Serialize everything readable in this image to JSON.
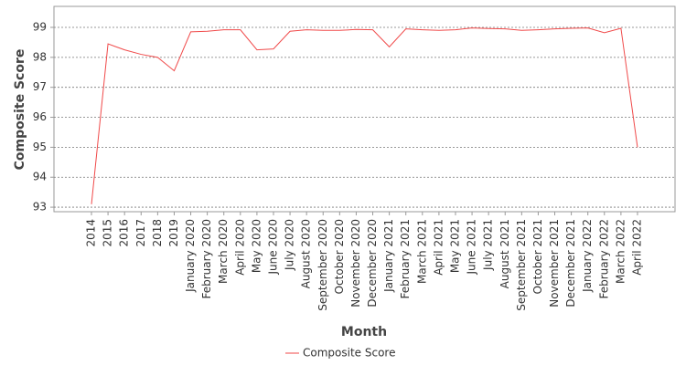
{
  "chart_data": {
    "type": "line",
    "x_label": "Month",
    "y_label": "Composite Score",
    "categories": [
      "2014",
      "2015",
      "2016",
      "2017",
      "2018",
      "2019",
      "January 2020",
      "February 2020",
      "March 2020",
      "April 2020",
      "May 2020",
      "June 2020",
      "July 2020",
      "August 2020",
      "September 2020",
      "October 2020",
      "November 2020",
      "December 2020",
      "January 2021",
      "February 2021",
      "March 2021",
      "April 2021",
      "May 2021",
      "June 2021",
      "July 2021",
      "August 2021",
      "September 2021",
      "October 2021",
      "November 2021",
      "December 2021",
      "January 2022",
      "February 2022",
      "March 2022",
      "April 2022"
    ],
    "series": [
      {
        "name": "Composite Score",
        "color": "#f04a4a",
        "values": [
          93.1,
          98.45,
          98.25,
          98.1,
          98.0,
          97.55,
          98.85,
          98.87,
          98.92,
          98.92,
          98.25,
          98.28,
          98.87,
          98.92,
          98.9,
          98.9,
          98.93,
          98.92,
          98.35,
          98.95,
          98.92,
          98.9,
          98.92,
          98.98,
          98.96,
          98.95,
          98.9,
          98.92,
          98.95,
          98.97,
          98.98,
          98.82,
          98.97,
          95.0
        ]
      }
    ],
    "ylim": [
      92.85,
      99.7
    ],
    "yticks": [
      93,
      94,
      95,
      96,
      97,
      98,
      99
    ],
    "grid": true
  }
}
